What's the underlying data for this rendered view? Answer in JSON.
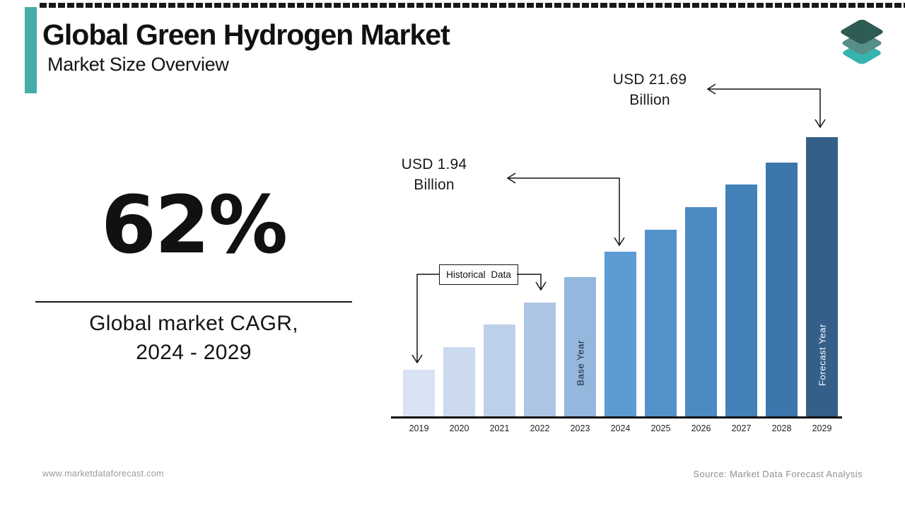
{
  "page": {
    "title": "Global Green Hydrogen Market",
    "subtitle": "Market Size Overview",
    "footer_left": "www.marketdataforecast.com",
    "footer_right": "Source: Market Data Forecast Analysis"
  },
  "stat": {
    "value": "62%",
    "caption_line1": "Global market CAGR,",
    "caption_line2": "2024 - 2029"
  },
  "colors": {
    "accent_teal": "#45aca9",
    "logo_top": "#2e5b53",
    "logo_middle": "#578f88",
    "logo_bottom": "#36b3ae",
    "axis": "#0d0d0d",
    "annotation_text": "#1a1a1a",
    "footer_text": "#9a9a9a"
  },
  "chart_data": {
    "type": "bar",
    "title": "Global Green Hydrogen Market Size Overview",
    "xlabel": "",
    "ylabel": "",
    "categories": [
      "2019",
      "2020",
      "2021",
      "2022",
      "2023",
      "2024",
      "2025",
      "2026",
      "2027",
      "2028",
      "2029"
    ],
    "relative_heights": [
      0.17,
      0.25,
      0.33,
      0.41,
      0.5,
      0.59,
      0.67,
      0.75,
      0.83,
      0.91,
      1.0
    ],
    "bar_colors": [
      "#d9e3f3",
      "#ccdaef",
      "#bdd0ea",
      "#adc5e5",
      "#94b7de",
      "#5b9ad2",
      "#5392ca",
      "#4b8ac2",
      "#4381b9",
      "#3c76ac",
      "#345f88"
    ],
    "annotated_values": [
      {
        "category": "2024",
        "line1": "USD 1.94",
        "line2": "Billion",
        "value_usd_billion": 1.94
      },
      {
        "category": "2029",
        "line1": "USD 21.69",
        "line2": "Billion",
        "value_usd_billion": 21.69
      }
    ],
    "in_bar_labels": [
      {
        "category": "2023",
        "text": "Base Year",
        "text_color": "#17222e"
      },
      {
        "category": "2029",
        "text": "Forecast Year",
        "text_color": "#ffffff"
      }
    ],
    "range_label": {
      "text": "Historical Data",
      "points_to": [
        "2019",
        "2022"
      ]
    },
    "x_axis_line": true,
    "y_axis": "none",
    "gridlines": false,
    "legend": "none"
  }
}
